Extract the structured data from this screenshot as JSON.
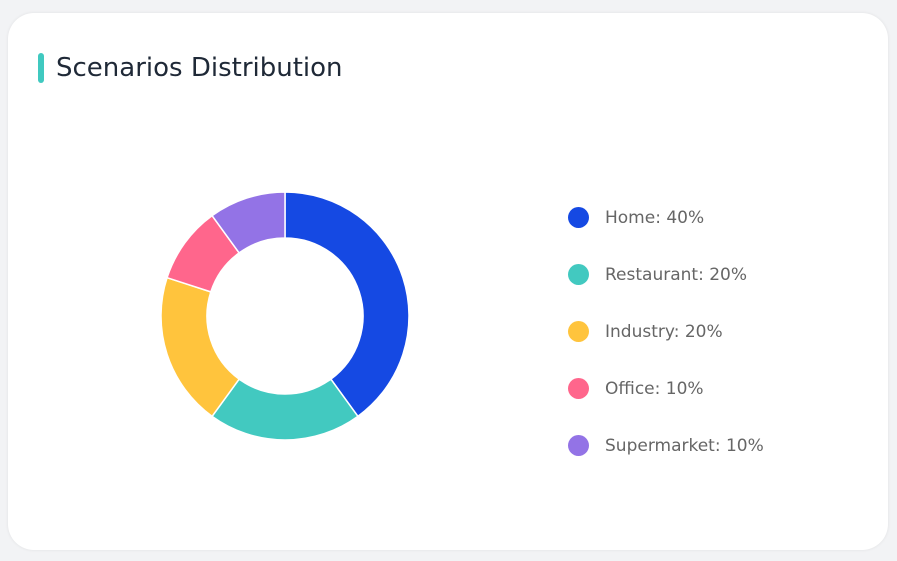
{
  "title": "Scenarios Distribution",
  "accent": "#40c9c0",
  "chart_data": {
    "type": "pie",
    "donut": true,
    "title": "Scenarios Distribution",
    "legend_position": "right",
    "slices": [
      {
        "name": "Home",
        "value": 40,
        "label": "Home: 40%",
        "color": "#1549e3"
      },
      {
        "name": "Restaurant",
        "value": 20,
        "label": "Restaurant: 20%",
        "color": "#42c9c0"
      },
      {
        "name": "Industry",
        "value": 20,
        "label": "Industry: 20%",
        "color": "#ffc43d"
      },
      {
        "name": "Office",
        "value": 10,
        "label": "Office: 10%",
        "color": "#ff668c"
      },
      {
        "name": "Supermarket",
        "value": 10,
        "label": "Supermarket: 10%",
        "color": "#9373e6"
      }
    ]
  }
}
